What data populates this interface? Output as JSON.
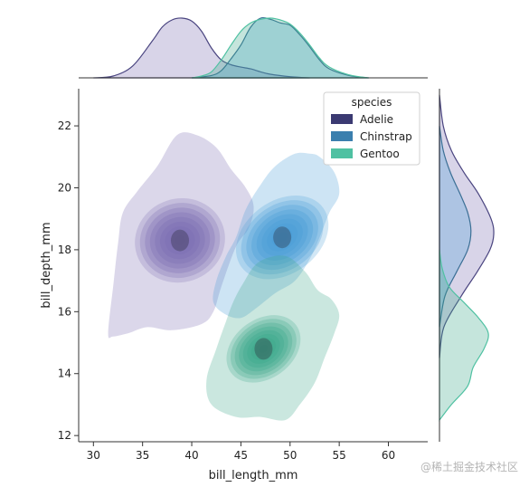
{
  "chart_data": {
    "type": "kde-jointplot",
    "xlabel": "bill_length_mm",
    "ylabel": "bill_depth_mm",
    "xlim": [
      28.5,
      64
    ],
    "ylim": [
      11.8,
      23.2
    ],
    "xticks": [
      30,
      35,
      40,
      45,
      50,
      55,
      60
    ],
    "yticks": [
      12,
      14,
      16,
      18,
      20,
      22
    ],
    "legend": {
      "title": "species",
      "placement": "upper-right",
      "entries": [
        {
          "name": "Adelie",
          "color": "#3b3a72"
        },
        {
          "name": "Chinstrap",
          "color": "#3b7fae"
        },
        {
          "name": "Gentoo",
          "color": "#4fc1a2"
        }
      ]
    },
    "series": [
      {
        "name": "Adelie",
        "color": "#7e6fb4",
        "marginal_color": "#4a4580",
        "center": [
          38.8,
          18.3
        ],
        "spread": [
          2.7,
          1.2
        ],
        "rho": 0.24,
        "outer_contour": [
          [
            31.5,
            15.3
          ],
          [
            32.0,
            16.8
          ],
          [
            32.5,
            18.2
          ],
          [
            33.0,
            19.2
          ],
          [
            34.5,
            19.9
          ],
          [
            36.5,
            20.7
          ],
          [
            38.5,
            21.7
          ],
          [
            40.5,
            21.7
          ],
          [
            42.5,
            21.3
          ],
          [
            44.0,
            20.6
          ],
          [
            45.5,
            20.0
          ],
          [
            46.3,
            19.4
          ],
          [
            45.8,
            18.7
          ],
          [
            44.5,
            18.1
          ],
          [
            43.0,
            16.8
          ],
          [
            42.2,
            16.0
          ],
          [
            41.0,
            15.6
          ],
          [
            38.0,
            15.4
          ],
          [
            35.5,
            15.5
          ],
          [
            33.5,
            15.3
          ],
          [
            32.0,
            15.2
          ]
        ],
        "marginal_x": [
          [
            30,
            0
          ],
          [
            32,
            0.03
          ],
          [
            34,
            0.2
          ],
          [
            36,
            0.62
          ],
          [
            37,
            0.85
          ],
          [
            38,
            0.97
          ],
          [
            39,
            1.0
          ],
          [
            40,
            0.95
          ],
          [
            41,
            0.78
          ],
          [
            42,
            0.5
          ],
          [
            43,
            0.3
          ],
          [
            44,
            0.22
          ],
          [
            45,
            0.18
          ],
          [
            46,
            0.15
          ],
          [
            47,
            0.1
          ],
          [
            48,
            0.06
          ],
          [
            50,
            0.02
          ],
          [
            52,
            0
          ]
        ],
        "marginal_y": [
          [
            14.5,
            0
          ],
          [
            15.5,
            0.08
          ],
          [
            16.5,
            0.4
          ],
          [
            17.3,
            0.7
          ],
          [
            18.0,
            0.93
          ],
          [
            18.5,
            1.0
          ],
          [
            19.0,
            0.95
          ],
          [
            19.8,
            0.72
          ],
          [
            20.5,
            0.45
          ],
          [
            21.2,
            0.22
          ],
          [
            22.0,
            0.07
          ],
          [
            23.0,
            0
          ]
        ]
      },
      {
        "name": "Chinstrap",
        "color": "#4a9ed7",
        "marginal_color": "#3b6f95",
        "center": [
          49.2,
          18.4
        ],
        "spread": [
          3.0,
          1.05
        ],
        "rho": 0.65,
        "outer_contour": [
          [
            42.2,
            16.3
          ],
          [
            42.5,
            17.0
          ],
          [
            43.5,
            17.8
          ],
          [
            44.5,
            18.4
          ],
          [
            45.5,
            19.3
          ],
          [
            47.0,
            20.1
          ],
          [
            48.5,
            20.7
          ],
          [
            50.5,
            21.1
          ],
          [
            52.0,
            21.1
          ],
          [
            53.0,
            21.0
          ],
          [
            54.5,
            20.5
          ],
          [
            55.0,
            19.8
          ],
          [
            54.0,
            19.2
          ],
          [
            53.0,
            18.4
          ],
          [
            52.0,
            17.7
          ],
          [
            50.5,
            17.0
          ],
          [
            48.5,
            16.6
          ],
          [
            46.5,
            16.1
          ],
          [
            45.0,
            15.8
          ],
          [
            43.5,
            15.9
          ]
        ],
        "marginal_x": [
          [
            40,
            0
          ],
          [
            42,
            0.04
          ],
          [
            43,
            0.12
          ],
          [
            44,
            0.32
          ],
          [
            45,
            0.55
          ],
          [
            46,
            0.85
          ],
          [
            47,
            1.0
          ],
          [
            48,
            0.98
          ],
          [
            49,
            0.92
          ],
          [
            50,
            0.88
          ],
          [
            51,
            0.72
          ],
          [
            52,
            0.52
          ],
          [
            53,
            0.3
          ],
          [
            54,
            0.15
          ],
          [
            56,
            0.04
          ],
          [
            58,
            0
          ]
        ],
        "marginal_y": [
          [
            15.5,
            0
          ],
          [
            16.5,
            0.1
          ],
          [
            17.3,
            0.32
          ],
          [
            18.0,
            0.52
          ],
          [
            18.6,
            0.58
          ],
          [
            19.2,
            0.52
          ],
          [
            19.8,
            0.38
          ],
          [
            20.5,
            0.2
          ],
          [
            21.2,
            0.07
          ],
          [
            22.0,
            0
          ]
        ]
      },
      {
        "name": "Gentoo",
        "color": "#3fa98c",
        "marginal_color": "#4fc1a2",
        "center": [
          47.3,
          14.8
        ],
        "spread": [
          2.4,
          0.85
        ],
        "rho": 0.65,
        "outer_contour": [
          [
            42.0,
            13.0
          ],
          [
            41.5,
            13.8
          ],
          [
            42.5,
            14.8
          ],
          [
            43.5,
            15.7
          ],
          [
            44.2,
            16.3
          ],
          [
            45.2,
            16.9
          ],
          [
            46.8,
            17.6
          ],
          [
            49.5,
            17.8
          ],
          [
            51.5,
            17.3
          ],
          [
            52.8,
            16.7
          ],
          [
            54.2,
            16.4
          ],
          [
            55.0,
            15.9
          ],
          [
            54.5,
            15.3
          ],
          [
            53.5,
            14.5
          ],
          [
            52.5,
            13.7
          ],
          [
            51.0,
            13.0
          ],
          [
            49.5,
            12.5
          ],
          [
            47.0,
            12.6
          ],
          [
            44.5,
            12.6
          ]
        ],
        "marginal_x": [
          [
            40,
            0
          ],
          [
            41,
            0.03
          ],
          [
            42,
            0.1
          ],
          [
            43,
            0.3
          ],
          [
            44,
            0.55
          ],
          [
            45,
            0.78
          ],
          [
            46,
            0.92
          ],
          [
            47,
            0.98
          ],
          [
            48,
            1.0
          ],
          [
            49,
            0.97
          ],
          [
            50,
            0.9
          ],
          [
            51,
            0.75
          ],
          [
            52,
            0.55
          ],
          [
            53,
            0.33
          ],
          [
            54,
            0.18
          ],
          [
            56,
            0.05
          ],
          [
            58,
            0
          ]
        ],
        "marginal_y": [
          [
            12.5,
            0
          ],
          [
            13.0,
            0.22
          ],
          [
            13.6,
            0.52
          ],
          [
            14.2,
            0.62
          ],
          [
            14.8,
            0.82
          ],
          [
            15.3,
            0.9
          ],
          [
            15.8,
            0.72
          ],
          [
            16.3,
            0.45
          ],
          [
            16.8,
            0.18
          ],
          [
            17.4,
            0.05
          ],
          [
            18.0,
            0
          ]
        ]
      }
    ]
  },
  "watermark": "@稀土掘金技术社区"
}
